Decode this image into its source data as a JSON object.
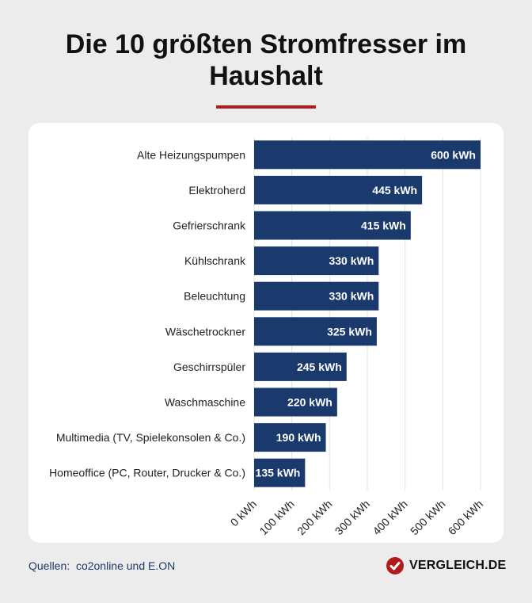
{
  "title": "Die 10 größten Stromfresser im Haushalt",
  "footer": {
    "sources_label": "Quellen:",
    "sources": "co2online und E.ON"
  },
  "brand": {
    "name": "VERGLEICH.DE",
    "icon": "check-circle-icon",
    "color": "#b01c1c"
  },
  "chart_data": {
    "type": "bar",
    "orientation": "horizontal",
    "title": "Die 10 größten Stromfresser im Haushalt",
    "categories": [
      "Alte Heizungspumpen",
      "Elektroherd",
      "Gefrierschrank",
      "Kühlschrank",
      "Beleuchtung",
      "Wäschetrockner",
      "Geschirrspüler",
      "Waschmaschine",
      "Multimedia (TV, Spielekonsolen & Co.)",
      "Homeoffice (PC, Router, Drucker & Co.)"
    ],
    "values": [
      600,
      445,
      415,
      330,
      330,
      325,
      245,
      220,
      190,
      135
    ],
    "value_labels": [
      "600 kWh",
      "445 kWh",
      "415 kWh",
      "330 kWh",
      "330 kWh",
      "325 kWh",
      "245 kWh",
      "220 kWh",
      "190 kWh",
      "135 kWh"
    ],
    "xlim": [
      0,
      600
    ],
    "ticks": [
      0,
      100,
      200,
      300,
      400,
      500,
      600
    ],
    "tick_labels": [
      "0 kWh",
      "100 kWh",
      "200 kWh",
      "300 kWh",
      "400 kWh",
      "500 kWh",
      "600 kWh"
    ],
    "grid": true,
    "bar_color": "#1a3a6e"
  }
}
